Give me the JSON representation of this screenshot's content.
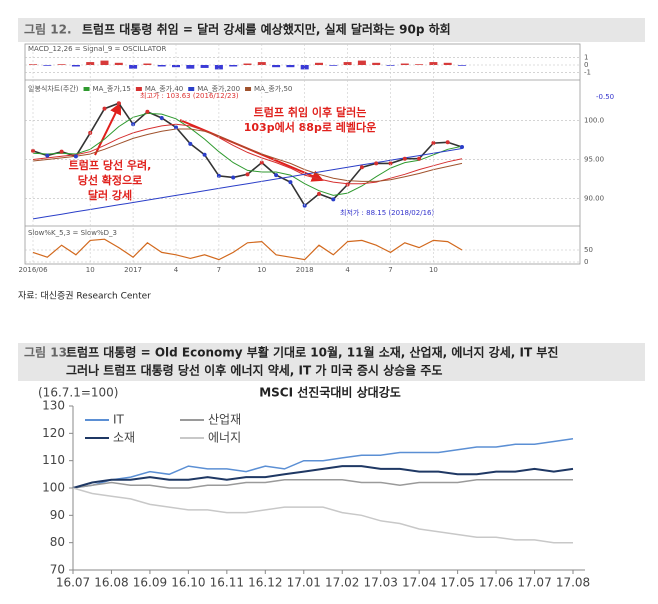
{
  "figure12": {
    "label": "그림 12.",
    "title": "트럼프 대통령 취임 = 달러 강세를 예상했지만, 실제 달러화는 90p 하회",
    "source": "자료: 대신증권 Research Center",
    "chart_data": [
      {
        "type": "bar",
        "title": "MACD_12,26 = Signal_9 = OSCILLATOR",
        "pos_color": "#d63a3a",
        "neg_color": "#3a3ad6",
        "values": [
          0.1,
          -0.1,
          0.1,
          -0.2,
          0.4,
          0.6,
          0.3,
          -0.5,
          0.2,
          -0.2,
          -0.3,
          -0.5,
          -0.4,
          -0.6,
          -0.2,
          0.2,
          0.4,
          -0.3,
          -0.3,
          -0.6,
          0.3,
          -0.1,
          0.4,
          0.6,
          0.3,
          -0.1,
          0.2,
          0.1,
          0.4,
          0.3,
          -0.1
        ],
        "ylim": [
          -1.5,
          1.5
        ],
        "yticks": [
          1,
          0,
          -1
        ]
      },
      {
        "type": "line",
        "change_label": "-0.50",
        "high_label": "최고가 : 103.63 (2016/12/23)",
        "low_label": "최저가 : 88.15 (2018/02/16)",
        "annotation_right": [
          "트럼프 취임 이후 달러는",
          "103p에서 88p로 레벨다운"
        ],
        "annotation_left": [
          "트럼프 당선 우려,",
          "당선 확정으로",
          "달러 강세"
        ],
        "categories": [
          "2016/06",
          null,
          null,
          null,
          "10",
          null,
          null,
          "2017",
          null,
          null,
          "4",
          null,
          null,
          "7",
          null,
          null,
          "10",
          null,
          null,
          "2018",
          null,
          null,
          "4",
          null,
          null,
          "7",
          null,
          null,
          "10",
          null,
          null
        ],
        "series": [
          {
            "name": "일봉식차트(주간)",
            "color": "#333333",
            "values": [
              96.1,
              95.5,
              96.0,
              95.4,
              98.4,
              101.5,
              102.2,
              99.5,
              101.1,
              100.3,
              99.1,
              97.0,
              95.6,
              92.9,
              92.7,
              93.1,
              94.6,
              93.0,
              92.1,
              89.1,
              90.6,
              89.9,
              91.8,
              94.0,
              94.5,
              94.5,
              95.1,
              95.1,
              97.1,
              97.2,
              96.6
            ]
          },
          {
            "name": "MA_종가,15",
            "color": "#2f9a2f",
            "values": [
              95.8,
              95.7,
              95.8,
              95.7,
              96.3,
              97.6,
              99.2,
              100.4,
              100.9,
              100.8,
              100.2,
              99.0,
              97.6,
              96.0,
              94.6,
              93.6,
              93.4,
              93.4,
              93.0,
              91.9,
              91.0,
              90.4,
              90.7,
              91.6,
              92.8,
              93.9,
              94.6,
              94.9,
              95.6,
              96.3,
              96.7
            ]
          },
          {
            "name": "MA_종가,40",
            "color": "#d63030",
            "values": [
              95.0,
              95.2,
              95.4,
              95.6,
              96.0,
              96.8,
              97.7,
              98.4,
              98.9,
              99.3,
              99.5,
              99.3,
              98.7,
              97.8,
              96.8,
              95.9,
              95.2,
              94.6,
              93.9,
              93.0,
              92.5,
              92.1,
              91.9,
              91.9,
              92.1,
              92.6,
              93.1,
              93.7,
              94.2,
              94.7,
              95.1
            ]
          },
          {
            "name": "MA_종가,200",
            "color": "#2a3ec8",
            "values": [
              87.4,
              87.7,
              88.0,
              88.3,
              88.6,
              88.9,
              89.2,
              89.5,
              89.8,
              90.1,
              90.4,
              90.7,
              91.0,
              91.3,
              91.6,
              91.9,
              92.2,
              92.5,
              92.8,
              93.1,
              93.4,
              93.7,
              94.0,
              94.3,
              94.6,
              94.9,
              95.2,
              95.5,
              95.8,
              96.1,
              96.4
            ]
          },
          {
            "name": "MA_종가,50",
            "color": "#a0522d",
            "values": [
              94.8,
              95.0,
              95.2,
              95.4,
              95.7,
              96.3,
              97.0,
              97.7,
              98.2,
              98.6,
              98.9,
              98.9,
              98.6,
              98.0,
              97.2,
              96.4,
              95.7,
              95.1,
              94.5,
              93.7,
              93.1,
              92.6,
              92.3,
              92.2,
              92.2,
              92.4,
              92.8,
              93.2,
              93.7,
              94.1,
              94.5
            ]
          }
        ],
        "ylim": [
          87,
          104.4
        ],
        "yticks": [
          {
            "value": 100,
            "label": "100.0"
          },
          {
            "value": 95,
            "label": "95.00"
          },
          {
            "value": 90,
            "label": "90.00"
          }
        ]
      },
      {
        "type": "line",
        "title": "Slow%K_5,3 = Slow%D_3",
        "color": "#d2691e",
        "values": [
          40,
          20,
          70,
          30,
          90,
          95,
          60,
          20,
          80,
          40,
          30,
          15,
          30,
          10,
          40,
          80,
          85,
          30,
          20,
          10,
          70,
          30,
          85,
          90,
          70,
          40,
          80,
          60,
          90,
          85,
          50
        ],
        "ylim": [
          0,
          100
        ],
        "yticks": [
          50,
          0
        ]
      }
    ]
  },
  "figure13": {
    "label": "그림 13.",
    "title": [
      "트럼프 대통령 = Old Economy 부활 기대로 10월, 11월 소재, 산업재, 에너지 강세, IT 부진",
      "그러나 트럼프 대통령 당선 이후 에너지 약세, IT 가 미국 증시 상승을 주도"
    ],
    "chart_data": {
      "type": "line",
      "title": "MSCI 선진국대비 상대강도",
      "y_unit": "(16.7.1=100)",
      "categories": [
        "16.07",
        null,
        "16.08",
        null,
        "16.09",
        null,
        "16.10",
        null,
        "16.11",
        null,
        "16.12",
        null,
        "17.01",
        null,
        "17.02",
        null,
        "17.03",
        null,
        "17.04",
        null,
        "17.05",
        null,
        "17.06",
        null,
        "17.07",
        null,
        "17.08"
      ],
      "series": [
        {
          "name": "IT",
          "color": "#5b8fd4",
          "values": [
            100,
            101,
            103,
            104,
            106,
            105,
            108,
            107,
            107,
            106,
            108,
            107,
            110,
            110,
            111,
            112,
            112,
            113,
            113,
            113,
            114,
            115,
            115,
            116,
            116,
            117,
            118
          ]
        },
        {
          "name": "산업재",
          "color": "#9a9a9a",
          "values": [
            100,
            101,
            102,
            101,
            101,
            100,
            100,
            101,
            101,
            102,
            102,
            103,
            103,
            103,
            103,
            102,
            102,
            101,
            102,
            102,
            102,
            103,
            103,
            103,
            103,
            103,
            103
          ]
        },
        {
          "name": "소재",
          "color": "#1f3864",
          "values": [
            100,
            102,
            103,
            103,
            104,
            103,
            103,
            104,
            103,
            104,
            104,
            105,
            106,
            107,
            108,
            108,
            107,
            107,
            106,
            106,
            105,
            105,
            106,
            106,
            107,
            106,
            107
          ]
        },
        {
          "name": "에너지",
          "color": "#c8c8c8",
          "values": [
            100,
            98,
            97,
            96,
            94,
            93,
            92,
            92,
            91,
            91,
            92,
            93,
            93,
            93,
            91,
            90,
            88,
            87,
            85,
            84,
            83,
            82,
            82,
            81,
            81,
            80,
            80
          ]
        }
      ],
      "ylim": [
        70,
        130
      ],
      "yticks": [
        70,
        80,
        90,
        100,
        110,
        120,
        130
      ]
    }
  }
}
